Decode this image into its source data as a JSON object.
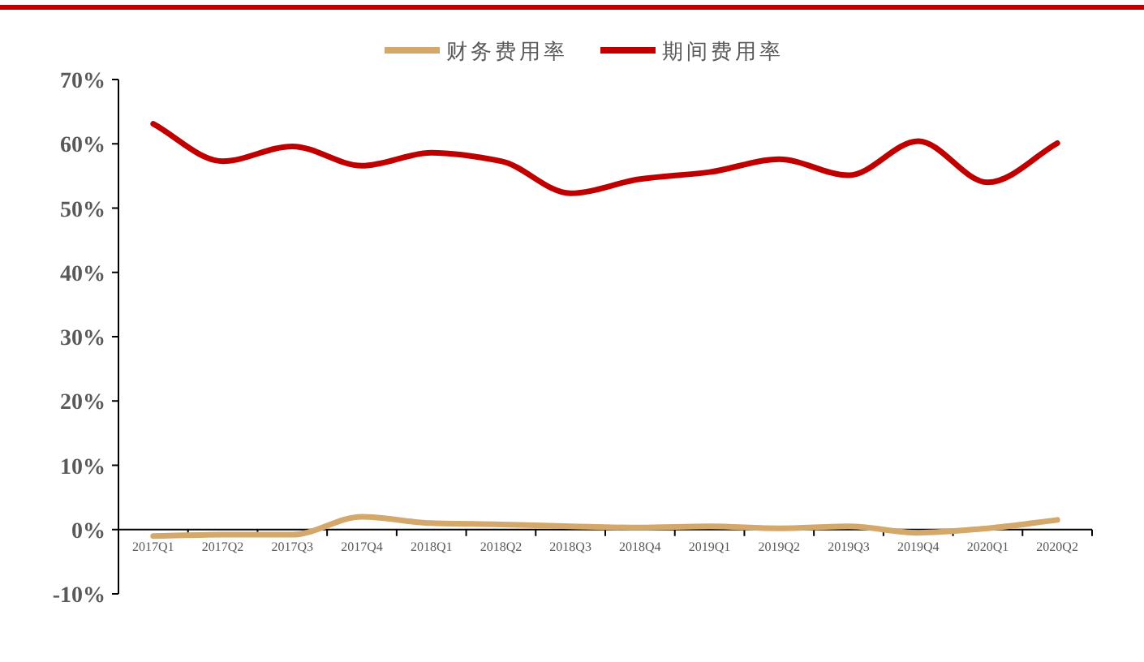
{
  "chart_data": {
    "type": "line",
    "categories": [
      "2017Q1",
      "2017Q2",
      "2017Q3",
      "2017Q4",
      "2018Q1",
      "2018Q2",
      "2018Q3",
      "2018Q4",
      "2019Q1",
      "2019Q2",
      "2019Q3",
      "2019Q4",
      "2020Q1",
      "2020Q2"
    ],
    "series": [
      {
        "name": "财务费用率",
        "color": "#d4a76a",
        "values": [
          -1.0,
          -0.8,
          -0.8,
          2.0,
          1.0,
          0.8,
          0.5,
          0.3,
          0.5,
          0.2,
          0.5,
          -0.5,
          0.2,
          1.5
        ]
      },
      {
        "name": "期间费用率",
        "color": "#c00000",
        "values": [
          63.1,
          57.3,
          59.6,
          56.6,
          58.6,
          57.3,
          52.3,
          54.5,
          55.6,
          57.6,
          55.1,
          60.4,
          54.0,
          60.1
        ]
      }
    ],
    "ylim": [
      -10,
      70
    ],
    "yticks": [
      {
        "value": -10,
        "label": "-10%"
      },
      {
        "value": 0,
        "label": "0%"
      },
      {
        "value": 10,
        "label": "10%"
      },
      {
        "value": 20,
        "label": "20%"
      },
      {
        "value": 30,
        "label": "30%"
      },
      {
        "value": 40,
        "label": "40%"
      },
      {
        "value": 50,
        "label": "50%"
      },
      {
        "value": 60,
        "label": "60%"
      },
      {
        "value": 70,
        "label": "70%"
      }
    ],
    "legend": "top",
    "grid": false,
    "marker": "none",
    "line_style": "solid"
  }
}
